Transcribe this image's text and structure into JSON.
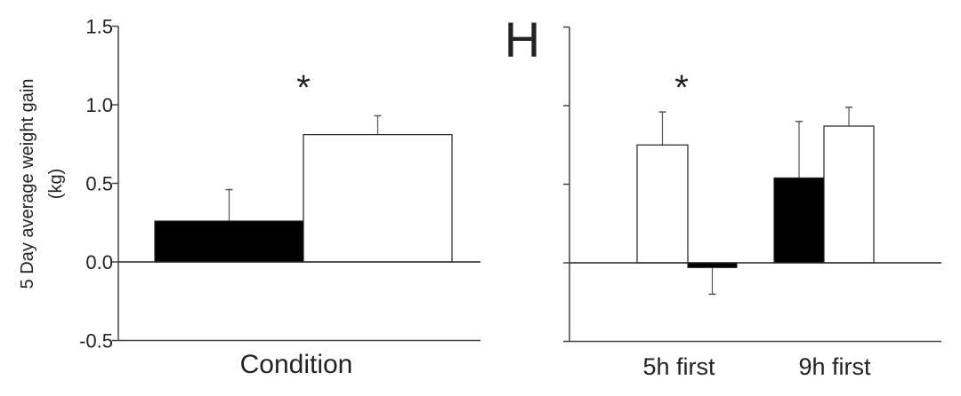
{
  "chart_data": [
    {
      "type": "bar",
      "panel_label": "",
      "xlabel": "Condition",
      "ylabel": "5 Day average weight gain\n(kg)",
      "ylim": [
        -0.5,
        1.5
      ],
      "yticks": [
        "1.5",
        "1.0",
        "0.5",
        "0.0",
        "-0.5"
      ],
      "ytick_values": [
        1.5,
        1.0,
        0.5,
        0.0,
        -0.5
      ],
      "grid": false,
      "annotation": "*",
      "bars": [
        {
          "fill": "#000000",
          "value": 0.26,
          "error": 0.2
        },
        {
          "fill": "#ffffff",
          "value": 0.81,
          "error": 0.12
        }
      ]
    },
    {
      "type": "bar",
      "panel_label": "H",
      "ylim": [
        -0.5,
        1.5
      ],
      "ytick_values": [
        1.5,
        1.0,
        0.5,
        0.0,
        -0.5
      ],
      "grid": false,
      "annotation": "*",
      "categories": [
        "5h first",
        "9h first"
      ],
      "groups": [
        {
          "label": "5h first",
          "bars": [
            {
              "fill": "#ffffff",
              "value": 0.75,
              "error": 0.21
            },
            {
              "fill": "#000000",
              "value": -0.03,
              "error": 0.17
            }
          ]
        },
        {
          "label": "9h first",
          "bars": [
            {
              "fill": "#000000",
              "value": 0.54,
              "error": 0.36
            },
            {
              "fill": "#ffffff",
              "value": 0.87,
              "error": 0.12
            }
          ]
        }
      ]
    }
  ]
}
